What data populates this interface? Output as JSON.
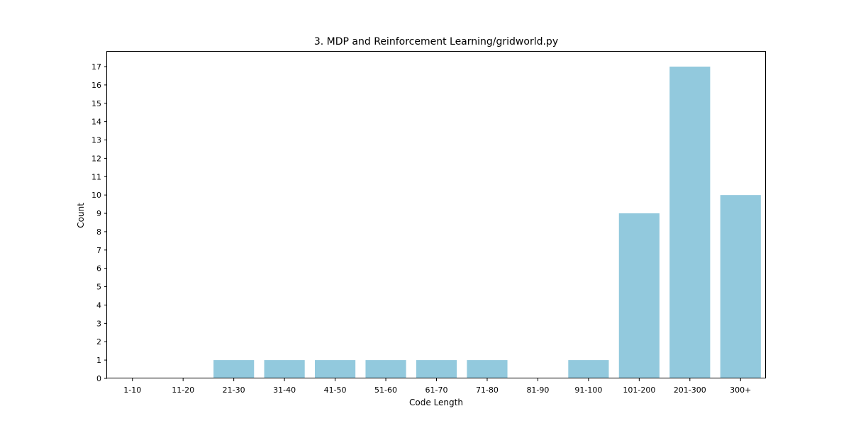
{
  "chart_data": {
    "type": "bar",
    "title": "3. MDP and Reinforcement Learning/gridworld.py",
    "xlabel": "Code Length",
    "ylabel": "Count",
    "categories": [
      "1-10",
      "11-20",
      "21-30",
      "31-40",
      "41-50",
      "51-60",
      "61-70",
      "71-80",
      "81-90",
      "91-100",
      "101-200",
      "201-300",
      "300+"
    ],
    "values": [
      0,
      0,
      1,
      1,
      1,
      1,
      1,
      1,
      0,
      1,
      9,
      17,
      10
    ],
    "ylim": [
      0,
      17.85
    ],
    "yticks": [
      0,
      1,
      2,
      3,
      4,
      5,
      6,
      7,
      8,
      9,
      10,
      11,
      12,
      13,
      14,
      15,
      16,
      17
    ],
    "grid": false,
    "legend": "none",
    "bar_color": "#92c9dd"
  }
}
